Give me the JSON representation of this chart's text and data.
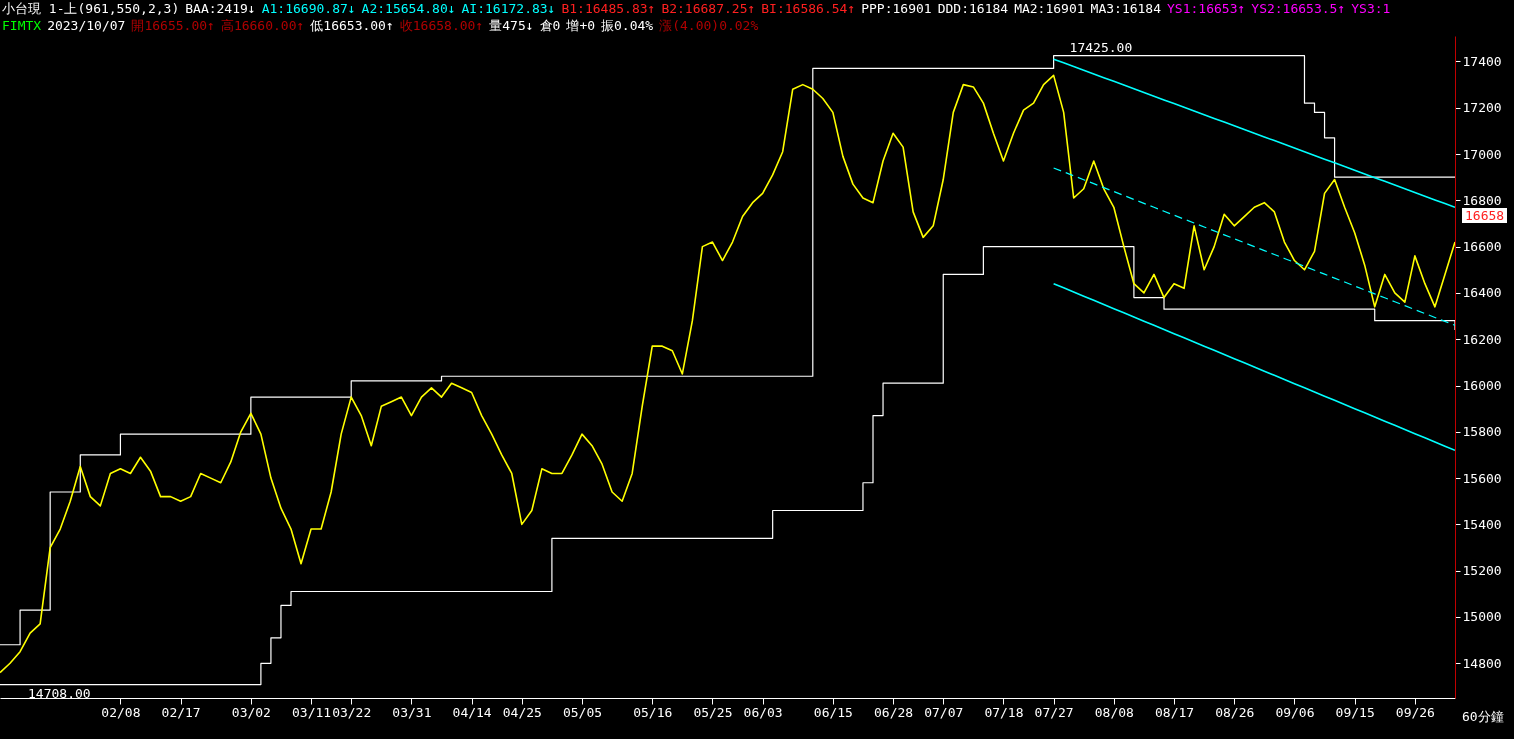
{
  "chart_data": {
    "type": "line",
    "annotations": [
      "小台現 1-上(961,550,2,3)",
      "BAA:2419↓",
      "A1:16690.87↓",
      "A2:15654.80↓",
      "AI:16172.83↓",
      "B1:16485.83↑",
      "B2:16687.25↑",
      "BI:16586.54↑",
      "PPP:16901",
      "DDD:16184",
      "MA2:16901",
      "MA3:16184",
      "YS1:16653↑",
      "YS2:16653.5↑",
      "YS3:1",
      "FIMTX",
      "2023/10/07",
      "開16655.00↑",
      "高16660.00↑",
      "低16653.00↑",
      "收16658.00↑",
      "量475↓",
      "倉0",
      "增+0",
      "振0.04%",
      "漲(4.00)0.02%",
      {
        "text": "17425.00",
        "x": "07/27",
        "y": 17425
      },
      {
        "text": "14708.00",
        "y": 14708
      },
      "16658"
    ],
    "xlabel": "60分鐘",
    "categories": [
      null,
      null,
      null,
      null,
      null,
      null,
      null,
      null,
      null,
      null,
      null,
      null,
      "02/08",
      null,
      null,
      null,
      null,
      null,
      "02/17",
      null,
      null,
      null,
      null,
      null,
      null,
      "03/02",
      null,
      null,
      null,
      null,
      null,
      "03/11",
      null,
      null,
      null,
      "03/22",
      null,
      null,
      null,
      null,
      null,
      "03/31",
      null,
      null,
      null,
      null,
      null,
      "04/14",
      null,
      null,
      null,
      null,
      "04/25",
      null,
      null,
      null,
      null,
      null,
      "05/05",
      null,
      null,
      null,
      null,
      null,
      null,
      "05/16",
      null,
      null,
      null,
      null,
      null,
      "05/25",
      null,
      null,
      null,
      null,
      "06/03",
      null,
      null,
      null,
      null,
      null,
      null,
      "06/15",
      null,
      null,
      null,
      null,
      null,
      "06/28",
      null,
      null,
      null,
      null,
      "07/07",
      null,
      null,
      null,
      null,
      null,
      "07/18",
      null,
      null,
      null,
      null,
      "07/27",
      null,
      null,
      null,
      null,
      null,
      "08/08",
      null,
      null,
      null,
      null,
      null,
      "08/17",
      null,
      null,
      null,
      null,
      null,
      "08/26",
      null,
      null,
      null,
      null,
      null,
      "09/06",
      null,
      null,
      null,
      null,
      null,
      "09/15",
      null,
      null,
      null,
      null,
      null,
      "09/26",
      null,
      null,
      null,
      null
    ],
    "ylim": [
      14650,
      17510
    ],
    "yticks": [
      14800,
      15000,
      15200,
      15400,
      15600,
      15800,
      16000,
      16200,
      16400,
      16600,
      16800,
      17000,
      17200,
      17400
    ],
    "series": [
      {
        "type": "step",
        "color": "#ffffff",
        "values": [
          14880,
          14880,
          15030,
          15030,
          15030,
          15540,
          15540,
          15540,
          15700,
          15700,
          15700,
          15700,
          15790,
          15790,
          15790,
          15790,
          15790,
          15790,
          15790,
          15790,
          15790,
          15790,
          15790,
          15790,
          15790,
          15950,
          15950,
          15950,
          15950,
          15950,
          15950,
          15950,
          15950,
          15950,
          15950,
          16020,
          16020,
          16020,
          16020,
          16020,
          16020,
          16020,
          16020,
          16020,
          16040,
          16040,
          16040,
          16040,
          16040,
          16040,
          16040,
          16040,
          16040,
          16040,
          16040,
          16040,
          16040,
          16040,
          16040,
          16040,
          16040,
          16040,
          16040,
          16040,
          16040,
          16040,
          16040,
          16040,
          16040,
          16040,
          16040,
          16040,
          16040,
          16040,
          16040,
          16040,
          16040,
          16040,
          16040,
          16040,
          16040,
          17370,
          17370,
          17370,
          17370,
          17370,
          17370,
          17370,
          17370,
          17370,
          17370,
          17370,
          17370,
          17370,
          17370,
          17370,
          17370,
          17370,
          17370,
          17370,
          17370,
          17370,
          17370,
          17370,
          17370,
          17425,
          17425,
          17425,
          17425,
          17425,
          17425,
          17425,
          17425,
          17425,
          17425,
          17425,
          17425,
          17425,
          17425,
          17425,
          17425,
          17425,
          17425,
          17425,
          17425,
          17425,
          17425,
          17425,
          17425,
          17425,
          17220,
          17180,
          17070,
          16900,
          16900,
          16900,
          16900,
          16900,
          16900,
          16900,
          16900,
          16900,
          16900,
          16900,
          16900,
          16900
        ]
      },
      {
        "type": "step",
        "color": "#ffffff",
        "values": [
          14708,
          14708,
          14708,
          14708,
          14708,
          14708,
          14708,
          14708,
          14708,
          14708,
          14708,
          14708,
          14708,
          14708,
          14708,
          14708,
          14708,
          14708,
          14708,
          14708,
          14708,
          14708,
          14708,
          14708,
          14708,
          14708,
          14800,
          14910,
          15050,
          15110,
          15110,
          15110,
          15110,
          15110,
          15110,
          15110,
          15110,
          15110,
          15110,
          15110,
          15110,
          15110,
          15110,
          15110,
          15110,
          15110,
          15110,
          15110,
          15110,
          15110,
          15110,
          15110,
          15110,
          15110,
          15110,
          15340,
          15340,
          15340,
          15340,
          15340,
          15340,
          15340,
          15340,
          15340,
          15340,
          15340,
          15340,
          15340,
          15340,
          15340,
          15340,
          15340,
          15340,
          15340,
          15340,
          15340,
          15340,
          15460,
          15460,
          15460,
          15460,
          15460,
          15460,
          15460,
          15460,
          15460,
          15580,
          15870,
          16010,
          16010,
          16010,
          16010,
          16010,
          16010,
          16480,
          16480,
          16480,
          16480,
          16600,
          16600,
          16600,
          16600,
          16600,
          16600,
          16600,
          16600,
          16600,
          16600,
          16600,
          16600,
          16600,
          16600,
          16600,
          16380,
          16380,
          16380,
          16330,
          16330,
          16330,
          16330,
          16330,
          16330,
          16330,
          16330,
          16330,
          16330,
          16330,
          16330,
          16330,
          16330,
          16330,
          16330,
          16330,
          16330,
          16330,
          16330,
          16330,
          16280,
          16280,
          16280,
          16280,
          16280,
          16280,
          16280,
          16280,
          16240
        ]
      },
      {
        "color": "#ffff00",
        "values": [
          14760,
          14800,
          14850,
          14930,
          14970,
          15300,
          15380,
          15500,
          15650,
          15520,
          15480,
          15620,
          15640,
          15620,
          15690,
          15630,
          15520,
          15520,
          15500,
          15520,
          15620,
          15600,
          15580,
          15670,
          15800,
          15880,
          15790,
          15600,
          15470,
          15380,
          15230,
          15380,
          15380,
          15540,
          15790,
          15950,
          15870,
          15740,
          15910,
          15930,
          15950,
          15870,
          15950,
          15990,
          15950,
          16010,
          15990,
          15970,
          15870,
          15790,
          15700,
          15620,
          15400,
          15460,
          15640,
          15620,
          15620,
          15700,
          15790,
          15740,
          15660,
          15540,
          15500,
          15620,
          15910,
          16170,
          16170,
          16150,
          16050,
          16280,
          16600,
          16620,
          16540,
          16620,
          16730,
          16790,
          16830,
          16910,
          17010,
          17280,
          17300,
          17280,
          17240,
          17180,
          16990,
          16870,
          16810,
          16790,
          16970,
          17090,
          17030,
          16750,
          16640,
          16690,
          16890,
          17180,
          17300,
          17290,
          17220,
          17090,
          16970,
          17090,
          17190,
          17220,
          17300,
          17340,
          17180,
          16810,
          16850,
          16970,
          16850,
          16770,
          16600,
          16440,
          16400,
          16480,
          16380,
          16440,
          16420,
          16690,
          16500,
          16600,
          16740,
          16690,
          16730,
          16770,
          16790,
          16750,
          16620,
          16540,
          16500,
          16580,
          16830,
          16890,
          16770,
          16660,
          16520,
          16340,
          16480,
          16400,
          16360,
          16560,
          16440,
          16340,
          16480,
          16620
        ]
      },
      {
        "type": "line",
        "color": "#00ffff",
        "values": [
          null,
          null,
          null,
          null,
          null,
          null,
          null,
          null,
          null,
          null,
          null,
          null,
          null,
          null,
          null,
          null,
          null,
          null,
          null,
          null,
          null,
          null,
          null,
          null,
          null,
          null,
          null,
          null,
          null,
          null,
          null,
          null,
          null,
          null,
          null,
          null,
          null,
          null,
          null,
          null,
          null,
          null,
          null,
          null,
          null,
          null,
          null,
          null,
          null,
          null,
          null,
          null,
          null,
          null,
          null,
          null,
          null,
          null,
          null,
          null,
          null,
          null,
          null,
          null,
          null,
          null,
          null,
          null,
          null,
          null,
          null,
          null,
          null,
          null,
          null,
          null,
          null,
          null,
          null,
          null,
          null,
          null,
          null,
          null,
          null,
          null,
          null,
          null,
          null,
          null,
          null,
          null,
          null,
          null,
          null,
          null,
          null,
          null,
          null,
          null,
          null,
          null,
          null,
          null,
          null,
          17410,
          17394,
          17378,
          17362,
          17346,
          17330,
          17314,
          17298,
          17282,
          17266,
          17250,
          17234,
          17218,
          17202,
          17186,
          17170,
          17154,
          17138,
          17122,
          17106,
          17090,
          17074,
          17058,
          17042,
          17026,
          17010,
          16994,
          16978,
          16962,
          16946,
          16930,
          16914,
          16898,
          16882,
          16866,
          16850,
          16834,
          16818,
          16802,
          16786,
          16770
        ]
      },
      {
        "type": "line",
        "color": "#00ffff",
        "line_style": "dashed",
        "values": [
          null,
          null,
          null,
          null,
          null,
          null,
          null,
          null,
          null,
          null,
          null,
          null,
          null,
          null,
          null,
          null,
          null,
          null,
          null,
          null,
          null,
          null,
          null,
          null,
          null,
          null,
          null,
          null,
          null,
          null,
          null,
          null,
          null,
          null,
          null,
          null,
          null,
          null,
          null,
          null,
          null,
          null,
          null,
          null,
          null,
          null,
          null,
          null,
          null,
          null,
          null,
          null,
          null,
          null,
          null,
          null,
          null,
          null,
          null,
          null,
          null,
          null,
          null,
          null,
          null,
          null,
          null,
          null,
          null,
          null,
          null,
          null,
          null,
          null,
          null,
          null,
          null,
          null,
          null,
          null,
          null,
          null,
          null,
          null,
          null,
          null,
          null,
          null,
          null,
          null,
          null,
          null,
          null,
          null,
          null,
          null,
          null,
          null,
          null,
          null,
          null,
          null,
          null,
          null,
          null,
          16940,
          16923,
          16906,
          16889,
          16872,
          16855,
          16838,
          16821,
          16804,
          16787,
          16770,
          16753,
          16736,
          16719,
          16702,
          16685,
          16668,
          16651,
          16634,
          16617,
          16600,
          16583,
          16566,
          16549,
          16532,
          16515,
          16498,
          16481,
          16464,
          16447,
          16430,
          16413,
          16396,
          16379,
          16362,
          16345,
          16328,
          16311,
          16294,
          16277,
          16260
        ]
      },
      {
        "type": "line",
        "color": "#00ffff",
        "values": [
          null,
          null,
          null,
          null,
          null,
          null,
          null,
          null,
          null,
          null,
          null,
          null,
          null,
          null,
          null,
          null,
          null,
          null,
          null,
          null,
          null,
          null,
          null,
          null,
          null,
          null,
          null,
          null,
          null,
          null,
          null,
          null,
          null,
          null,
          null,
          null,
          null,
          null,
          null,
          null,
          null,
          null,
          null,
          null,
          null,
          null,
          null,
          null,
          null,
          null,
          null,
          null,
          null,
          null,
          null,
          null,
          null,
          null,
          null,
          null,
          null,
          null,
          null,
          null,
          null,
          null,
          null,
          null,
          null,
          null,
          null,
          null,
          null,
          null,
          null,
          null,
          null,
          null,
          null,
          null,
          null,
          null,
          null,
          null,
          null,
          null,
          null,
          null,
          null,
          null,
          null,
          null,
          null,
          null,
          null,
          null,
          null,
          null,
          null,
          null,
          null,
          null,
          null,
          null,
          null,
          16440,
          16422,
          16404,
          16386,
          16368,
          16350,
          16332,
          16314,
          16296,
          16278,
          16260,
          16242,
          16224,
          16206,
          16188,
          16170,
          16152,
          16134,
          16116,
          16098,
          16080,
          16062,
          16044,
          16026,
          16008,
          15990,
          15972,
          15954,
          15936,
          15918,
          15900,
          15882,
          15864,
          15846,
          15828,
          15810,
          15792,
          15774,
          15756,
          15738,
          15720
        ]
      }
    ]
  }
}
